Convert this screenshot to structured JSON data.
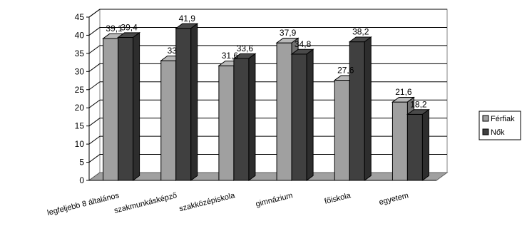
{
  "chart_data": {
    "type": "bar",
    "categories": [
      "legfeljebb 8 általános",
      "szakmunkásképző",
      "szakközépiskola",
      "gimnázium",
      "főiskola",
      "egyetem"
    ],
    "series": [
      {
        "name": "Férfiak",
        "values": [
          39.1,
          33,
          31.6,
          37.9,
          27.6,
          21.6
        ],
        "labels": [
          "39,1",
          "33",
          "31,6",
          "37,9",
          "27,6",
          "21,6"
        ]
      },
      {
        "name": "Nők",
        "values": [
          39.4,
          41.9,
          33.6,
          34.8,
          38.2,
          18.2
        ],
        "labels": [
          "39,4",
          "41,9",
          "33,6",
          "34,8",
          "38,2",
          "18,2"
        ]
      }
    ],
    "ylim": [
      0,
      45
    ],
    "yticks": [
      0,
      5,
      10,
      15,
      20,
      25,
      30,
      35,
      40,
      45
    ],
    "grid": true,
    "legend_position": "right",
    "colors": {
      "series": [
        "#a0a0a0",
        "#404040"
      ],
      "floor": "#a0a0a0",
      "grid": "#000000"
    }
  }
}
